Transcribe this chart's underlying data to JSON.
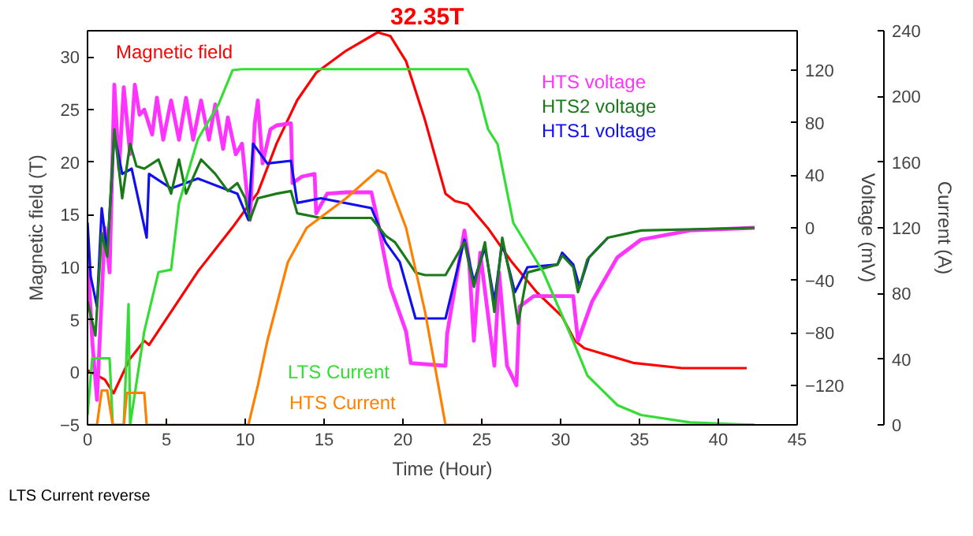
{
  "chart_data": {
    "type": "line",
    "xlabel": "Time (Hour)",
    "ylabel": "Magnetic field (T)",
    "y2label": "Voltage (mV)",
    "y3label": "Current (A)",
    "xlim": [
      0,
      45
    ],
    "xticks": [
      0,
      5,
      10,
      15,
      20,
      25,
      30,
      35,
      40,
      45
    ],
    "ylim": [
      -5,
      32.5
    ],
    "yticks": [
      -5,
      0,
      5,
      10,
      15,
      20,
      25,
      30
    ],
    "y2lim": [
      -150,
      150
    ],
    "y2ticks": [
      -120,
      -80,
      -40,
      0,
      40,
      80,
      120
    ],
    "y3lim": [
      0,
      240
    ],
    "y3ticks": [
      0,
      40,
      80,
      120,
      160,
      200,
      240
    ],
    "grid": false,
    "marker": "none",
    "line_style": "solid",
    "annotations": [
      "32.35T",
      "LTS Current reverse"
    ],
    "series": [
      {
        "name": "Magnetic field",
        "color": "#ff0000",
        "x": [
          0,
          1.1,
          1.65,
          2.65,
          3.6,
          3.9,
          7,
          9.2,
          10.8,
          12,
          13.3,
          14.5,
          16.4,
          18.4,
          19.2,
          20.2,
          21.4,
          22.7,
          23.3,
          24.1,
          25.4,
          26.9,
          28.5,
          30.1,
          30.9,
          31.5,
          34.6,
          37.7,
          41.8
        ],
        "values": [
          0.2,
          -0.7,
          -2,
          1.2,
          3,
          2.6,
          9.6,
          13.8,
          17.1,
          21.8,
          25.9,
          28.5,
          30.6,
          32.35,
          32,
          29.6,
          24,
          17,
          16.3,
          16,
          13.7,
          10.5,
          7.6,
          5.3,
          3,
          2.3,
          0.9,
          0.4,
          0.4
        ]
      },
      {
        "name": "HTS voltage",
        "color": "#ff33ff",
        "axis": "y2",
        "x": [
          0,
          0.3,
          0.6,
          1.1,
          1.4,
          1.7,
          2,
          2.3,
          2.7,
          3,
          3.3,
          3.6,
          4.1,
          4.4,
          4.8,
          5.3,
          5.8,
          6.25,
          6.7,
          7.2,
          7.7,
          8.1,
          8.6,
          8.9,
          9.4,
          9.8,
          10.2,
          10.3,
          10.6,
          10.8,
          11.1,
          11.6,
          12,
          12.9,
          13,
          13.6,
          14.4,
          14.5,
          15.2,
          16.4,
          18,
          18.3,
          19.2,
          20.2,
          20.5,
          22.7,
          22.8,
          23.9,
          24.2,
          24.5,
          24.9,
          25.8,
          26.1,
          26.6,
          27.2,
          27.4,
          28.3,
          30.8,
          31.1,
          32,
          33.6,
          35.1,
          38.2,
          42.3
        ],
        "values": [
          -19,
          -86,
          -131,
          0,
          -34,
          109,
          45,
          107,
          56,
          109,
          86,
          90,
          71,
          99,
          67,
          97,
          67,
          99,
          67,
          97,
          67,
          94,
          60,
          84,
          56,
          64,
          15,
          6,
          79,
          97,
          49,
          75,
          78,
          79.5,
          34,
          39,
          41,
          11,
          26,
          27,
          27,
          11,
          -45,
          -79,
          -103,
          -105,
          -81,
          -2,
          -26,
          -86,
          -19,
          -105,
          -34,
          -105,
          -120,
          -60,
          -52,
          -52,
          -86,
          -56,
          -22.5,
          -9,
          -2,
          0
        ]
      },
      {
        "name": "HTS1 voltage",
        "color": "#1010ee",
        "axis": "y2",
        "x": [
          0,
          0.2,
          0.6,
          0.9,
          1.25,
          1.7,
          2.2,
          2.8,
          3.75,
          3.9,
          5.3,
          7,
          9.5,
          10.2,
          10.5,
          11.4,
          12.9,
          13.3,
          14.8,
          18,
          18.9,
          19.8,
          20.8,
          22.7,
          23.9,
          24.5,
          25.2,
          25.8,
          26.3,
          27.1,
          27.9,
          29.8,
          30.1,
          30.8,
          31.2,
          31.8,
          33
        ],
        "values": [
          4,
          -37,
          -60,
          15,
          -19,
          71,
          41,
          45,
          -7.5,
          41,
          30,
          37.5,
          26,
          6,
          64,
          49,
          51,
          19,
          22.5,
          15,
          -11,
          -26,
          -69,
          -69,
          -9,
          -41,
          -15,
          -56,
          -11,
          -49,
          -30,
          -28,
          -19,
          -28,
          -45,
          -22.5,
          -7.5
        ]
      },
      {
        "name": "HTS2 voltage",
        "color": "#1a7a1a",
        "axis": "y2",
        "x": [
          0,
          0.5,
          0.9,
          1.25,
          1.7,
          2.2,
          2.7,
          3.1,
          3.6,
          4.5,
          5.3,
          5.8,
          6.25,
          7.2,
          8.1,
          8.9,
          9.5,
          10,
          10.3,
          10.8,
          12,
          12.9,
          13.3,
          14.8,
          18,
          18.9,
          19.5,
          20.8,
          21.4,
          22.7,
          23.9,
          24.5,
          25.2,
          25.8,
          26.3,
          27,
          27.3,
          27.9,
          29.8,
          30.1,
          30.8,
          31.1,
          31.7,
          33,
          35.1,
          42.3
        ],
        "values": [
          -56,
          -82,
          -4,
          -22,
          75,
          22.5,
          64,
          47,
          45,
          52,
          26,
          52,
          26,
          52,
          41,
          28,
          34,
          22.5,
          6,
          22.5,
          26,
          28,
          11,
          7.5,
          7.5,
          -6,
          -11,
          -34,
          -36,
          -36,
          -11,
          -45,
          -11,
          -64,
          -7.5,
          -49,
          -73,
          -34,
          -28,
          -21,
          -30,
          -49,
          -24,
          -7.5,
          -2,
          0
        ]
      },
      {
        "name": "LTS Current",
        "color": "#33dd33",
        "axis": "y3",
        "x": [
          0,
          0.3,
          1.4,
          1.6,
          2.3,
          2.6,
          2.7,
          3.6,
          4.5,
          5.3,
          5.8,
          7,
          8.3,
          9.2,
          9.8,
          24.1,
          24.8,
          25.4,
          26,
          27,
          28.9,
          30.8,
          31.7,
          33.6,
          35.1,
          38.2,
          42.3
        ],
        "values": [
          6,
          40.5,
          40.5,
          0,
          0,
          73.5,
          0,
          57,
          93,
          94.5,
          135,
          174,
          195,
          216,
          216.6,
          216.6,
          202,
          180,
          171,
          123,
          93,
          51,
          30,
          12,
          6,
          1.5,
          0
        ]
      },
      {
        "name": "HTS Current",
        "color": "#ff8000",
        "axis": "y3",
        "x": [
          0,
          0.6,
          0.9,
          1.25,
          1.6,
          2.3,
          2.5,
          3.6,
          3.75,
          10.2,
          10.8,
          11.4,
          12.7,
          13.9,
          16.4,
          18.4,
          18.9,
          20.2,
          21.4,
          22.7,
          42.3
        ],
        "values": [
          0,
          0,
          21,
          21,
          0,
          0,
          19.5,
          19.5,
          0,
          0,
          24,
          51,
          99,
          120,
          138,
          155,
          153,
          120,
          69,
          0,
          0
        ]
      }
    ]
  }
}
